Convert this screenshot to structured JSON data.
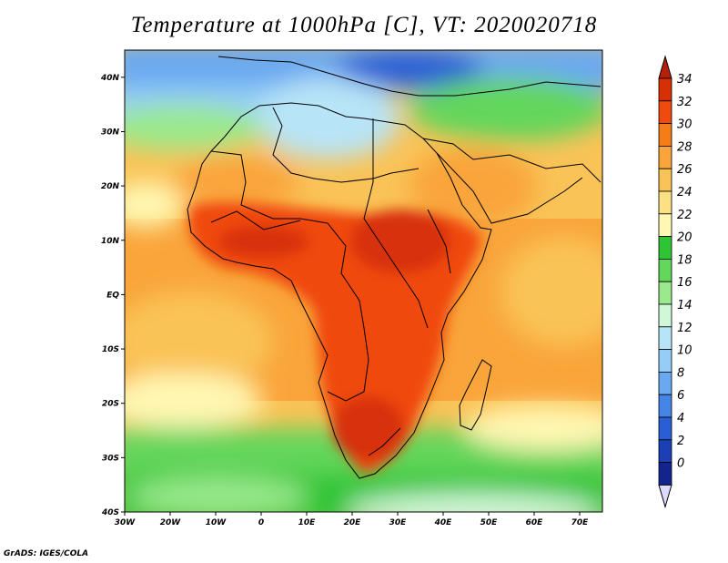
{
  "title": "Temperature at 1000hPa [C], VT: 2020020718",
  "footer": "GrADS: IGES/COLA",
  "map": {
    "lon_range": [
      -30,
      75
    ],
    "lat_range": [
      -40,
      45
    ],
    "lon_ticks": [
      {
        "lon": -30,
        "label": "30W"
      },
      {
        "lon": -20,
        "label": "20W"
      },
      {
        "lon": -10,
        "label": "10W"
      },
      {
        "lon": 0,
        "label": "0"
      },
      {
        "lon": 10,
        "label": "10E"
      },
      {
        "lon": 20,
        "label": "20E"
      },
      {
        "lon": 30,
        "label": "30E"
      },
      {
        "lon": 40,
        "label": "40E"
      },
      {
        "lon": 50,
        "label": "50E"
      },
      {
        "lon": 60,
        "label": "60E"
      },
      {
        "lon": 70,
        "label": "70E"
      }
    ],
    "lat_ticks": [
      {
        "lat": 40,
        "label": "40N"
      },
      {
        "lat": 30,
        "label": "30N"
      },
      {
        "lat": 20,
        "label": "20N"
      },
      {
        "lat": 10,
        "label": "10N"
      },
      {
        "lat": 0,
        "label": "EQ"
      },
      {
        "lat": -10,
        "label": "10S"
      },
      {
        "lat": -20,
        "label": "20S"
      },
      {
        "lat": -30,
        "label": "30S"
      },
      {
        "lat": -40,
        "label": "40S"
      }
    ]
  },
  "colorbar": {
    "units": "C",
    "labels": [
      "34",
      "32",
      "30",
      "28",
      "26",
      "24",
      "22",
      "20",
      "18",
      "16",
      "14",
      "12",
      "10",
      "8",
      "6",
      "4",
      "2",
      "0"
    ],
    "colors": [
      "#d73007",
      "#f04a0f",
      "#f57d17",
      "#f9a53a",
      "#fac357",
      "#fbe184",
      "#fff7b3",
      "#2ec436",
      "#63d65c",
      "#9ae98c",
      "#d1f7d9",
      "#b7e4f7",
      "#94cef6",
      "#6aa9f0",
      "#4585e6",
      "#2a5ed4",
      "#1d3fb5",
      "#13248c"
    ],
    "over_color": "#b5200a",
    "under_color": "#dcdcff"
  }
}
